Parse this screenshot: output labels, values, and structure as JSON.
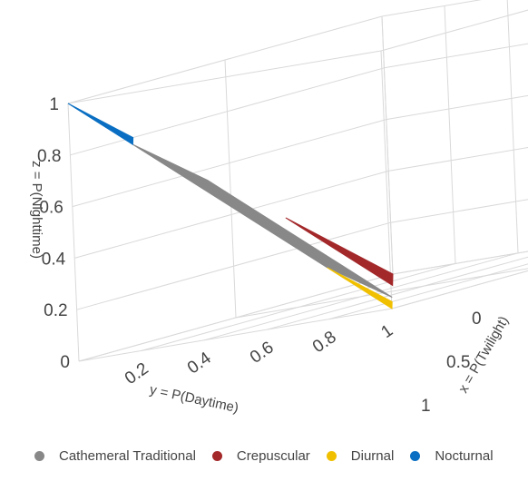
{
  "chart_data": {
    "type": "scatter3d-ternary",
    "axes": {
      "x": {
        "label": "x = P(Twilight)",
        "ticks": [
          "0",
          "0.5",
          "1"
        ],
        "range": [
          0,
          1
        ]
      },
      "y": {
        "label": "y = P(Daytime)",
        "ticks": [
          "0",
          "0.2",
          "0.4",
          "0.6",
          "0.8",
          "1"
        ],
        "range": [
          0,
          1
        ]
      },
      "z": {
        "label": "z = P(Nighttime)",
        "ticks": [
          "0",
          "0.2",
          "0.4",
          "0.6",
          "0.8",
          "1"
        ],
        "range": [
          0,
          1
        ]
      }
    },
    "grid": true,
    "legend_position": "bottom",
    "series": [
      {
        "name": "Cathemeral Traditional",
        "color": "#888888",
        "region": [
          [
            0.33,
            0.67,
            0
          ],
          [
            0.33,
            0.1,
            0.57
          ],
          [
            0,
            0.2,
            0.8
          ],
          [
            0,
            0.8,
            0.2
          ]
        ]
      },
      {
        "name": "Crepuscular",
        "color": "#a3282a",
        "region": [
          [
            1,
            0,
            0
          ],
          [
            0.67,
            0,
            0.33
          ],
          [
            0.67,
            0.33,
            0
          ]
        ]
      },
      {
        "name": "Diurnal",
        "color": "#f0c000",
        "region": [
          [
            0,
            1,
            0
          ],
          [
            0,
            0.8,
            0.2
          ],
          [
            0.2,
            0.8,
            0
          ]
        ]
      },
      {
        "name": "Nocturnal",
        "color": "#0a6fc2",
        "region": [
          [
            0,
            0,
            1
          ],
          [
            0,
            0.2,
            0.8
          ],
          [
            0.2,
            0,
            0.8
          ]
        ]
      }
    ]
  }
}
